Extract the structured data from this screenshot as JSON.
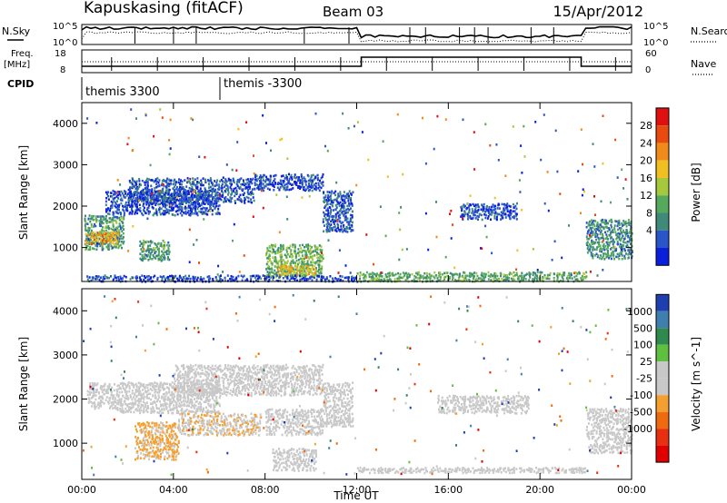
{
  "header": {
    "station": "Kapuskasing (fitACF)",
    "beam": "Beam 03",
    "date": "15/Apr/2012"
  },
  "summary": {
    "nsky_label": "N.Sky",
    "nsky_ticks": [
      "10^5",
      "10^0"
    ],
    "nsearch_label": "N.Search",
    "nsearch_ticks": [
      "10^5",
      "10^0"
    ],
    "freq_label": "Freq.",
    "freq_unit": "[MHz]",
    "freq_ticks": [
      "18",
      "8"
    ],
    "nave_label": "Nave",
    "nave_ticks": [
      "60",
      "0"
    ],
    "cpid_label": "CPID",
    "cpid_segments": [
      "themis 3300",
      "themis -3300"
    ]
  },
  "colors": {
    "power": [
      "#0a1fdc",
      "#2a55c8",
      "#3f8a78",
      "#54a95a",
      "#a6c83c",
      "#f0c020",
      "#f08a18",
      "#e84a10",
      "#e01010"
    ],
    "velocity": [
      "#1f3fb0",
      "#3f7fb0",
      "#2f8a50",
      "#5fc040",
      "#c8c8c8",
      "#c8c8c8",
      "#f4a030",
      "#f06a10",
      "#e83010",
      "#e00000"
    ]
  },
  "chart_data": [
    {
      "type": "heatmap",
      "title": "Power",
      "ylabel": "Slant Range [km]",
      "xlabel": "",
      "colorbar_label": "Power [dB]",
      "colorbar_ticks": [
        "28",
        "24",
        "20",
        "16",
        "12",
        "8",
        "4"
      ],
      "y_ticks": [
        "4000",
        "3000",
        "2000",
        "1000"
      ],
      "ylim": [
        180,
        4500
      ],
      "x_ticks_hours": [
        0,
        4,
        8,
        12,
        16,
        20,
        24
      ],
      "scale_min": 0,
      "scale_max": 30,
      "regions": [
        {
          "t0": 0.1,
          "t1": 1.8,
          "r0": 950,
          "r1": 1800,
          "val": 10
        },
        {
          "t0": 0.1,
          "t1": 1.6,
          "r0": 1100,
          "r1": 1400,
          "val": 20
        },
        {
          "t0": 1.0,
          "t1": 6.0,
          "r0": 1800,
          "r1": 2400,
          "val": 4
        },
        {
          "t0": 2.0,
          "t1": 7.5,
          "r0": 2100,
          "r1": 2700,
          "val": 5
        },
        {
          "t0": 7.5,
          "t1": 10.5,
          "r0": 2400,
          "r1": 2800,
          "val": 4
        },
        {
          "t0": 10.5,
          "t1": 11.8,
          "r0": 1400,
          "r1": 2400,
          "val": 5
        },
        {
          "t0": 2.5,
          "t1": 3.8,
          "r0": 700,
          "r1": 1200,
          "val": 10
        },
        {
          "t0": 8.0,
          "t1": 10.5,
          "r0": 300,
          "r1": 1100,
          "val": 12
        },
        {
          "t0": 8.5,
          "t1": 10.2,
          "r0": 350,
          "r1": 600,
          "val": 18
        },
        {
          "t0": 12.0,
          "t1": 22.0,
          "r0": 200,
          "r1": 430,
          "val": 11
        },
        {
          "t0": 16.5,
          "t1": 19.0,
          "r0": 1700,
          "r1": 2100,
          "val": 4
        },
        {
          "t0": 22.0,
          "t1": 24.0,
          "r0": 750,
          "r1": 1700,
          "val": 9
        },
        {
          "t0": 0.2,
          "t1": 12.0,
          "r0": 200,
          "r1": 350,
          "val": 4
        }
      ]
    },
    {
      "type": "heatmap",
      "title": "Velocity",
      "ylabel": "Slant Range [km]",
      "xlabel": "Time UT",
      "colorbar_label": "Velocity [m s^-1]",
      "colorbar_ticks": [
        "1000",
        "500",
        "100",
        "25",
        "-25",
        "-100",
        "-500",
        "-1000"
      ],
      "y_ticks": [
        "4000",
        "3000",
        "2000",
        "1000"
      ],
      "ylim": [
        180,
        4500
      ],
      "x_tick_labels": [
        "00:00",
        "04:00",
        "08:00",
        "12:00",
        "16:00",
        "20:00",
        "00:00"
      ],
      "x_ticks_hours": [
        0,
        4,
        8,
        12,
        16,
        20,
        24
      ],
      "scale_min": -1000,
      "scale_max": 1000,
      "regions": [
        {
          "t0": 0.2,
          "t1": 1.5,
          "r0": 1800,
          "r1": 2400,
          "val": 0
        },
        {
          "t0": 1.5,
          "t1": 6.0,
          "r0": 1700,
          "r1": 2400,
          "val": 0
        },
        {
          "t0": 4.0,
          "t1": 10.5,
          "r0": 2100,
          "r1": 2800,
          "val": 0
        },
        {
          "t0": 10.5,
          "t1": 11.8,
          "r0": 1400,
          "r1": 2400,
          "val": 0
        },
        {
          "t0": 2.3,
          "t1": 4.2,
          "r0": 650,
          "r1": 1500,
          "val": -250
        },
        {
          "t0": 4.2,
          "t1": 7.8,
          "r0": 1200,
          "r1": 1700,
          "val": -150
        },
        {
          "t0": 8.0,
          "t1": 10.5,
          "r0": 1200,
          "r1": 1800,
          "val": 60
        },
        {
          "t0": 8.3,
          "t1": 10.2,
          "r0": 400,
          "r1": 900,
          "val": -60
        },
        {
          "t0": 12.0,
          "t1": 22.0,
          "r0": 350,
          "r1": 470,
          "val": 0
        },
        {
          "t0": 15.5,
          "t1": 19.5,
          "r0": 1700,
          "r1": 2100,
          "val": 0
        },
        {
          "t0": 22.0,
          "t1": 24.0,
          "r0": 800,
          "r1": 1800,
          "val": 0
        }
      ]
    }
  ]
}
